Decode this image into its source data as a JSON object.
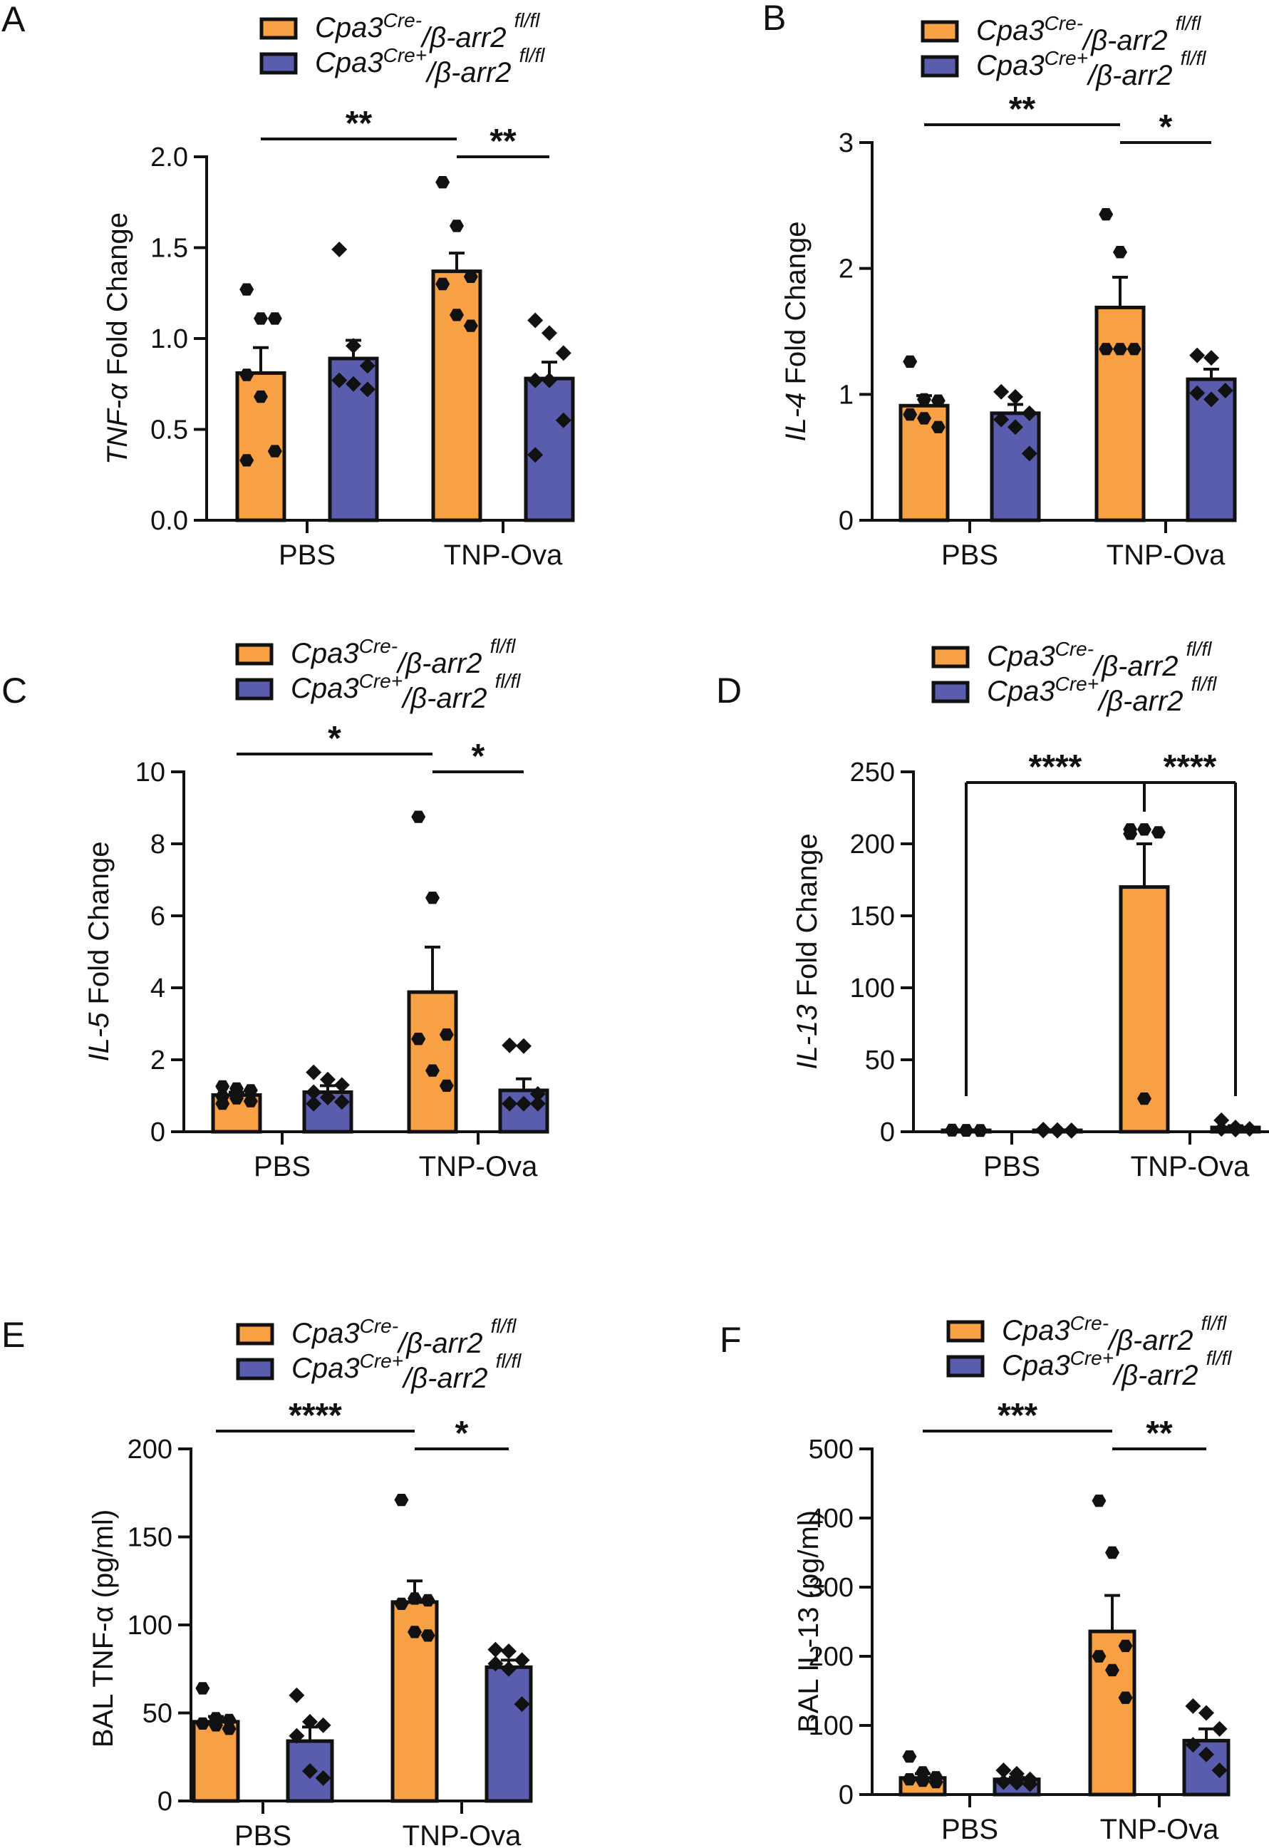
{
  "colors": {
    "orange": "#F7A044",
    "blue": "#5A5DAE",
    "ink": "#111111"
  },
  "legend": {
    "series": [
      {
        "base": "Cpa3",
        "sup": "Cre-",
        "mid": "/β-arr2 ",
        "sup2": "fl/fl"
      },
      {
        "base": "Cpa3",
        "sup": "Cre+",
        "mid": "/β-arr2 ",
        "sup2": "fl/fl"
      }
    ]
  },
  "chart_data": [
    {
      "panel": "A",
      "type": "bar",
      "categories": [
        "PBS",
        "TNP-Ova"
      ],
      "ylabel": {
        "italic": "TNF-α",
        "rest": " Fold Change"
      },
      "ylim": [
        0,
        2.0
      ],
      "yticks": [
        0.0,
        0.5,
        1.0,
        1.5,
        2.0
      ],
      "yticklabels": [
        "0.0",
        "0.5",
        "1.0",
        "1.5",
        "2.0"
      ],
      "series": [
        {
          "name": "Cpa3Cre-/β-arr2 fl/fl",
          "values": [
            0.81,
            1.37
          ],
          "sem": [
            0.14,
            0.1
          ],
          "points": [
            [
              1.27,
              1.11,
              1.11,
              0.8,
              0.68,
              0.38,
              0.33
            ],
            [
              1.86,
              1.62,
              1.34,
              1.3,
              1.13,
              1.07
            ]
          ]
        },
        {
          "name": "Cpa3Cre+/β-arr2 fl/fl",
          "values": [
            0.89,
            0.78
          ],
          "sem": [
            0.1,
            0.09
          ],
          "points": [
            [
              1.49,
              0.96,
              0.85,
              0.77,
              0.75,
              0.72
            ],
            [
              1.1,
              1.03,
              0.92,
              0.77,
              0.77,
              0.55,
              0.36
            ]
          ]
        }
      ],
      "brackets": [
        {
          "from": [
            0,
            0
          ],
          "to": [
            1,
            0
          ],
          "label": "**"
        },
        {
          "from": [
            1,
            0
          ],
          "to": [
            1,
            1
          ],
          "label": "**"
        }
      ]
    },
    {
      "panel": "B",
      "type": "bar",
      "categories": [
        "PBS",
        "TNP-Ova"
      ],
      "ylabel": {
        "italic": "IL-4",
        "rest": " Fold Change"
      },
      "ylim": [
        0,
        3
      ],
      "yticks": [
        0,
        1,
        2,
        3
      ],
      "yticklabels": [
        "0",
        "1",
        "2",
        "3"
      ],
      "series": [
        {
          "name": "Cpa3Cre-/β-arr2 fl/fl",
          "values": [
            0.91,
            1.69
          ],
          "sem": [
            0.08,
            0.24
          ],
          "points": [
            [
              1.26,
              0.96,
              0.95,
              0.84,
              0.81,
              0.74
            ],
            [
              2.43,
              2.13,
              1.36,
              1.36,
              1.36
            ]
          ]
        },
        {
          "name": "Cpa3Cre+/β-arr2 fl/fl",
          "values": [
            0.85,
            1.12
          ],
          "sem": [
            0.07,
            0.08
          ],
          "points": [
            [
              1.02,
              0.98,
              0.85,
              0.8,
              0.74,
              0.53
            ],
            [
              1.31,
              1.29,
              1.03,
              1.01,
              0.96
            ]
          ]
        }
      ],
      "brackets": [
        {
          "from": [
            0,
            0
          ],
          "to": [
            1,
            0
          ],
          "label": "**"
        },
        {
          "from": [
            1,
            0
          ],
          "to": [
            1,
            1
          ],
          "label": "*"
        }
      ]
    },
    {
      "panel": "C",
      "type": "bar",
      "categories": [
        "PBS",
        "TNP-Ova"
      ],
      "ylabel": {
        "italic": "IL-5",
        "rest": " Fold Change"
      },
      "ylim": [
        0,
        10
      ],
      "yticks": [
        0,
        2,
        4,
        6,
        8,
        10
      ],
      "yticklabels": [
        "0",
        "2",
        "4",
        "6",
        "8",
        "10"
      ],
      "series": [
        {
          "name": "Cpa3Cre-/β-arr2 fl/fl",
          "values": [
            1.02,
            3.88
          ],
          "sem": [
            0.08,
            1.25
          ],
          "points": [
            [
              1.26,
              1.2,
              1.15,
              0.98,
              0.93,
              0.85,
              0.78
            ],
            [
              8.75,
              6.5,
              2.7,
              2.58,
              1.7,
              1.28
            ]
          ]
        },
        {
          "name": "Cpa3Cre+/β-arr2 fl/fl",
          "values": [
            1.1,
            1.15
          ],
          "sem": [
            0.18,
            0.32
          ],
          "points": [
            [
              1.65,
              1.45,
              1.3,
              1.1,
              0.95,
              0.83,
              0.78
            ],
            [
              2.4,
              2.38,
              1.05,
              0.78,
              0.78,
              0.78
            ]
          ]
        }
      ],
      "brackets": [
        {
          "from": [
            0,
            0
          ],
          "to": [
            1,
            0
          ],
          "label": "*"
        },
        {
          "from": [
            1,
            0
          ],
          "to": [
            1,
            1
          ],
          "label": "*"
        }
      ]
    },
    {
      "panel": "D",
      "type": "bar",
      "categories": [
        "PBS",
        "TNP-Ova"
      ],
      "ylabel": {
        "italic": "IL-13",
        "rest": " Fold Change"
      },
      "ylim": [
        0,
        250
      ],
      "yticks": [
        0,
        50,
        100,
        150,
        200,
        250
      ],
      "yticklabels": [
        "0",
        "50",
        "100",
        "150",
        "200",
        "250"
      ],
      "series": [
        {
          "name": "Cpa3Cre-/β-arr2 fl/fl",
          "values": [
            1.0,
            170
          ],
          "sem": [
            0.3,
            30
          ],
          "points": [
            [
              1.3,
              1.1,
              1.0,
              0.9,
              0.8,
              0.7
            ],
            [
              210,
              210,
              208,
              207,
              23
            ]
          ]
        },
        {
          "name": "Cpa3Cre+/β-arr2 fl/fl",
          "values": [
            1.0,
            3.0
          ],
          "sem": [
            0.3,
            1.2
          ],
          "points": [
            [
              1.5,
              1.2,
              1.0,
              0.8,
              0.7,
              0.6
            ],
            [
              8,
              3,
              2,
              2,
              1.5
            ]
          ]
        }
      ],
      "brackets": [
        {
          "from": [
            0,
            0
          ],
          "to": [
            1,
            0
          ],
          "label": "****",
          "style": "vertical"
        },
        {
          "from": [
            1,
            0
          ],
          "to": [
            1,
            1
          ],
          "label": "****",
          "style": "vertical"
        }
      ]
    },
    {
      "panel": "E",
      "type": "bar",
      "categories": [
        "PBS",
        "TNP-Ova"
      ],
      "ylabel": {
        "italic": "",
        "rest": "BAL TNF-α (pg/ml)"
      },
      "ylim": [
        0,
        200
      ],
      "yticks": [
        0,
        50,
        100,
        150,
        200
      ],
      "yticklabels": [
        "0",
        "50",
        "100",
        "150",
        "200"
      ],
      "series": [
        {
          "name": "Cpa3Cre-/β-arr2 fl/fl",
          "values": [
            45,
            113
          ],
          "sem": [
            3,
            12
          ],
          "points": [
            [
              64,
              47,
              46,
              44,
              43,
              41
            ],
            [
              171,
              115,
              114,
              112,
              96,
              94
            ]
          ]
        },
        {
          "name": "Cpa3Cre+/β-arr2 fl/fl",
          "values": [
            34,
            76
          ],
          "sem": [
            8,
            4
          ],
          "points": [
            [
              60,
              45,
              43,
              37,
              17,
              13
            ],
            [
              86,
              85,
              80,
              78,
              75,
              55
            ]
          ]
        }
      ],
      "brackets": [
        {
          "from": [
            0,
            0
          ],
          "to": [
            1,
            0
          ],
          "label": "****"
        },
        {
          "from": [
            1,
            0
          ],
          "to": [
            1,
            1
          ],
          "label": "*"
        }
      ]
    },
    {
      "panel": "F",
      "type": "bar",
      "categories": [
        "PBS",
        "TNP-Ova"
      ],
      "ylabel": {
        "italic": "",
        "rest": "BAL IL-13 (pg/ml)"
      },
      "ylim": [
        0,
        500
      ],
      "yticks": [
        0,
        100,
        200,
        300,
        400,
        500
      ],
      "yticklabels": [
        "0",
        "100",
        "200",
        "300",
        "400",
        "500"
      ],
      "series": [
        {
          "name": "Cpa3Cre-/β-arr2 fl/fl",
          "values": [
            24,
            236
          ],
          "sem": [
            6,
            52
          ],
          "points": [
            [
              55,
              32,
              25,
              22,
              20,
              18
            ],
            [
              425,
              350,
              215,
              200,
              180,
              140
            ]
          ]
        },
        {
          "name": "Cpa3Cre+/β-arr2 fl/fl",
          "values": [
            22,
            78
          ],
          "sem": [
            3,
            17
          ],
          "points": [
            [
              35,
              30,
              22,
              18,
              17,
              15
            ],
            [
              128,
              118,
              95,
              72,
              58,
              35
            ]
          ]
        }
      ],
      "brackets": [
        {
          "from": [
            0,
            0
          ],
          "to": [
            1,
            0
          ],
          "label": "***"
        },
        {
          "from": [
            1,
            0
          ],
          "to": [
            1,
            1
          ],
          "label": "**"
        }
      ]
    }
  ]
}
